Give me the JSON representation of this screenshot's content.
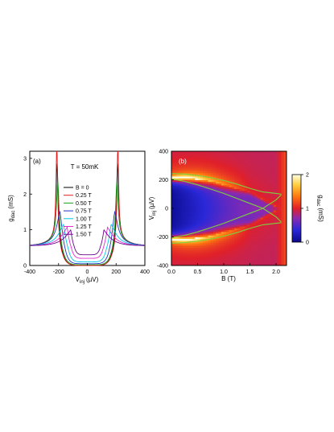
{
  "chart_data": [
    {
      "panel": "(a)",
      "type": "line",
      "annotation": "T = 50mK",
      "xlabel": "V",
      "xlabel_sub": "inj",
      "xlabel_unit": "(µV)",
      "ylabel": "g",
      "ylabel_sub": "dac",
      "ylabel_unit": "(mS)",
      "xlim": [
        -400,
        400
      ],
      "ylim": [
        0,
        3.2
      ],
      "xticks": [
        -400,
        -200,
        0,
        200,
        400
      ],
      "yticks": [
        0,
        1,
        2,
        3
      ],
      "legend_position": "right",
      "gap_field_points": [
        0,
        0.25,
        0.5,
        0.75,
        1.0,
        1.25,
        1.5
      ],
      "gap_values_uV": [
        210,
        212,
        205,
        190,
        165,
        140,
        115
      ],
      "series": [
        {
          "name": "B = 0",
          "color": "#000000",
          "peak_uV": 210,
          "peak": 2.5,
          "width_uV": 9,
          "background": 0.55,
          "subgap": 0.0
        },
        {
          "name": "0.25 T",
          "color": "#e41a1c",
          "peak_uV": 212,
          "peak": 3.0,
          "width_uV": 7,
          "background": 0.55,
          "subgap": 0.0
        },
        {
          "name": "0.50 T",
          "color": "#1a9e1a",
          "peak_uV": 205,
          "peak": 2.0,
          "width_uV": 11,
          "background": 0.55,
          "subgap": 0.02
        },
        {
          "name": "0.75 T",
          "color": "#2232c8",
          "peak_uV": 190,
          "peak": 1.15,
          "width_uV": 24,
          "background": 0.55,
          "subgap": 0.05
        },
        {
          "name": "1.00 T",
          "color": "#00c8e6",
          "peak_uV": 165,
          "peak": 0.8,
          "width_uV": 40,
          "background": 0.55,
          "subgap": 0.1
        },
        {
          "name": "1.25 T",
          "color": "#e62ad2",
          "peak_uV": 140,
          "peak": 0.72,
          "width_uV": 48,
          "background": 0.55,
          "subgap": 0.2
        },
        {
          "name": "1.50 T",
          "color": "#6a0a8a",
          "peak_uV": 115,
          "peak": 0.65,
          "width_uV": 55,
          "background": 0.55,
          "subgap": 0.3
        }
      ]
    },
    {
      "panel": "(b)",
      "type": "heatmap",
      "xlabel": "B (T)",
      "ylabel": "V",
      "ylabel_sub": "inj",
      "ylabel_unit": "(µV)",
      "xlim": [
        0,
        2.2
      ],
      "ylim": [
        -400,
        400
      ],
      "xticks": [
        0.0,
        0.5,
        1.0,
        1.5,
        2.0
      ],
      "xtick_labels": [
        "0.0",
        "0.5",
        "1.0",
        "1.5",
        "2.0"
      ],
      "yticks": [
        -400,
        -200,
        0,
        200,
        400
      ],
      "colorbar": {
        "label": "g",
        "label_sub": "dac",
        "label_unit": "(mS)",
        "min": 0,
        "max": 2,
        "ticks": [
          0,
          1,
          2
        ]
      },
      "gap_lines": {
        "color": "#7cd23c",
        "B": [
          0.0,
          0.25,
          0.5,
          0.75,
          1.0,
          1.25,
          1.5,
          1.75,
          2.0,
          2.1
        ],
        "upper_uV": [
          245,
          240,
          230,
          215,
          195,
          170,
          140,
          115,
          105,
          100
        ],
        "lower_uV": [
          205,
          190,
          165,
          135,
          105,
          70,
          35,
          0,
          -60,
          -95
        ]
      }
    }
  ]
}
